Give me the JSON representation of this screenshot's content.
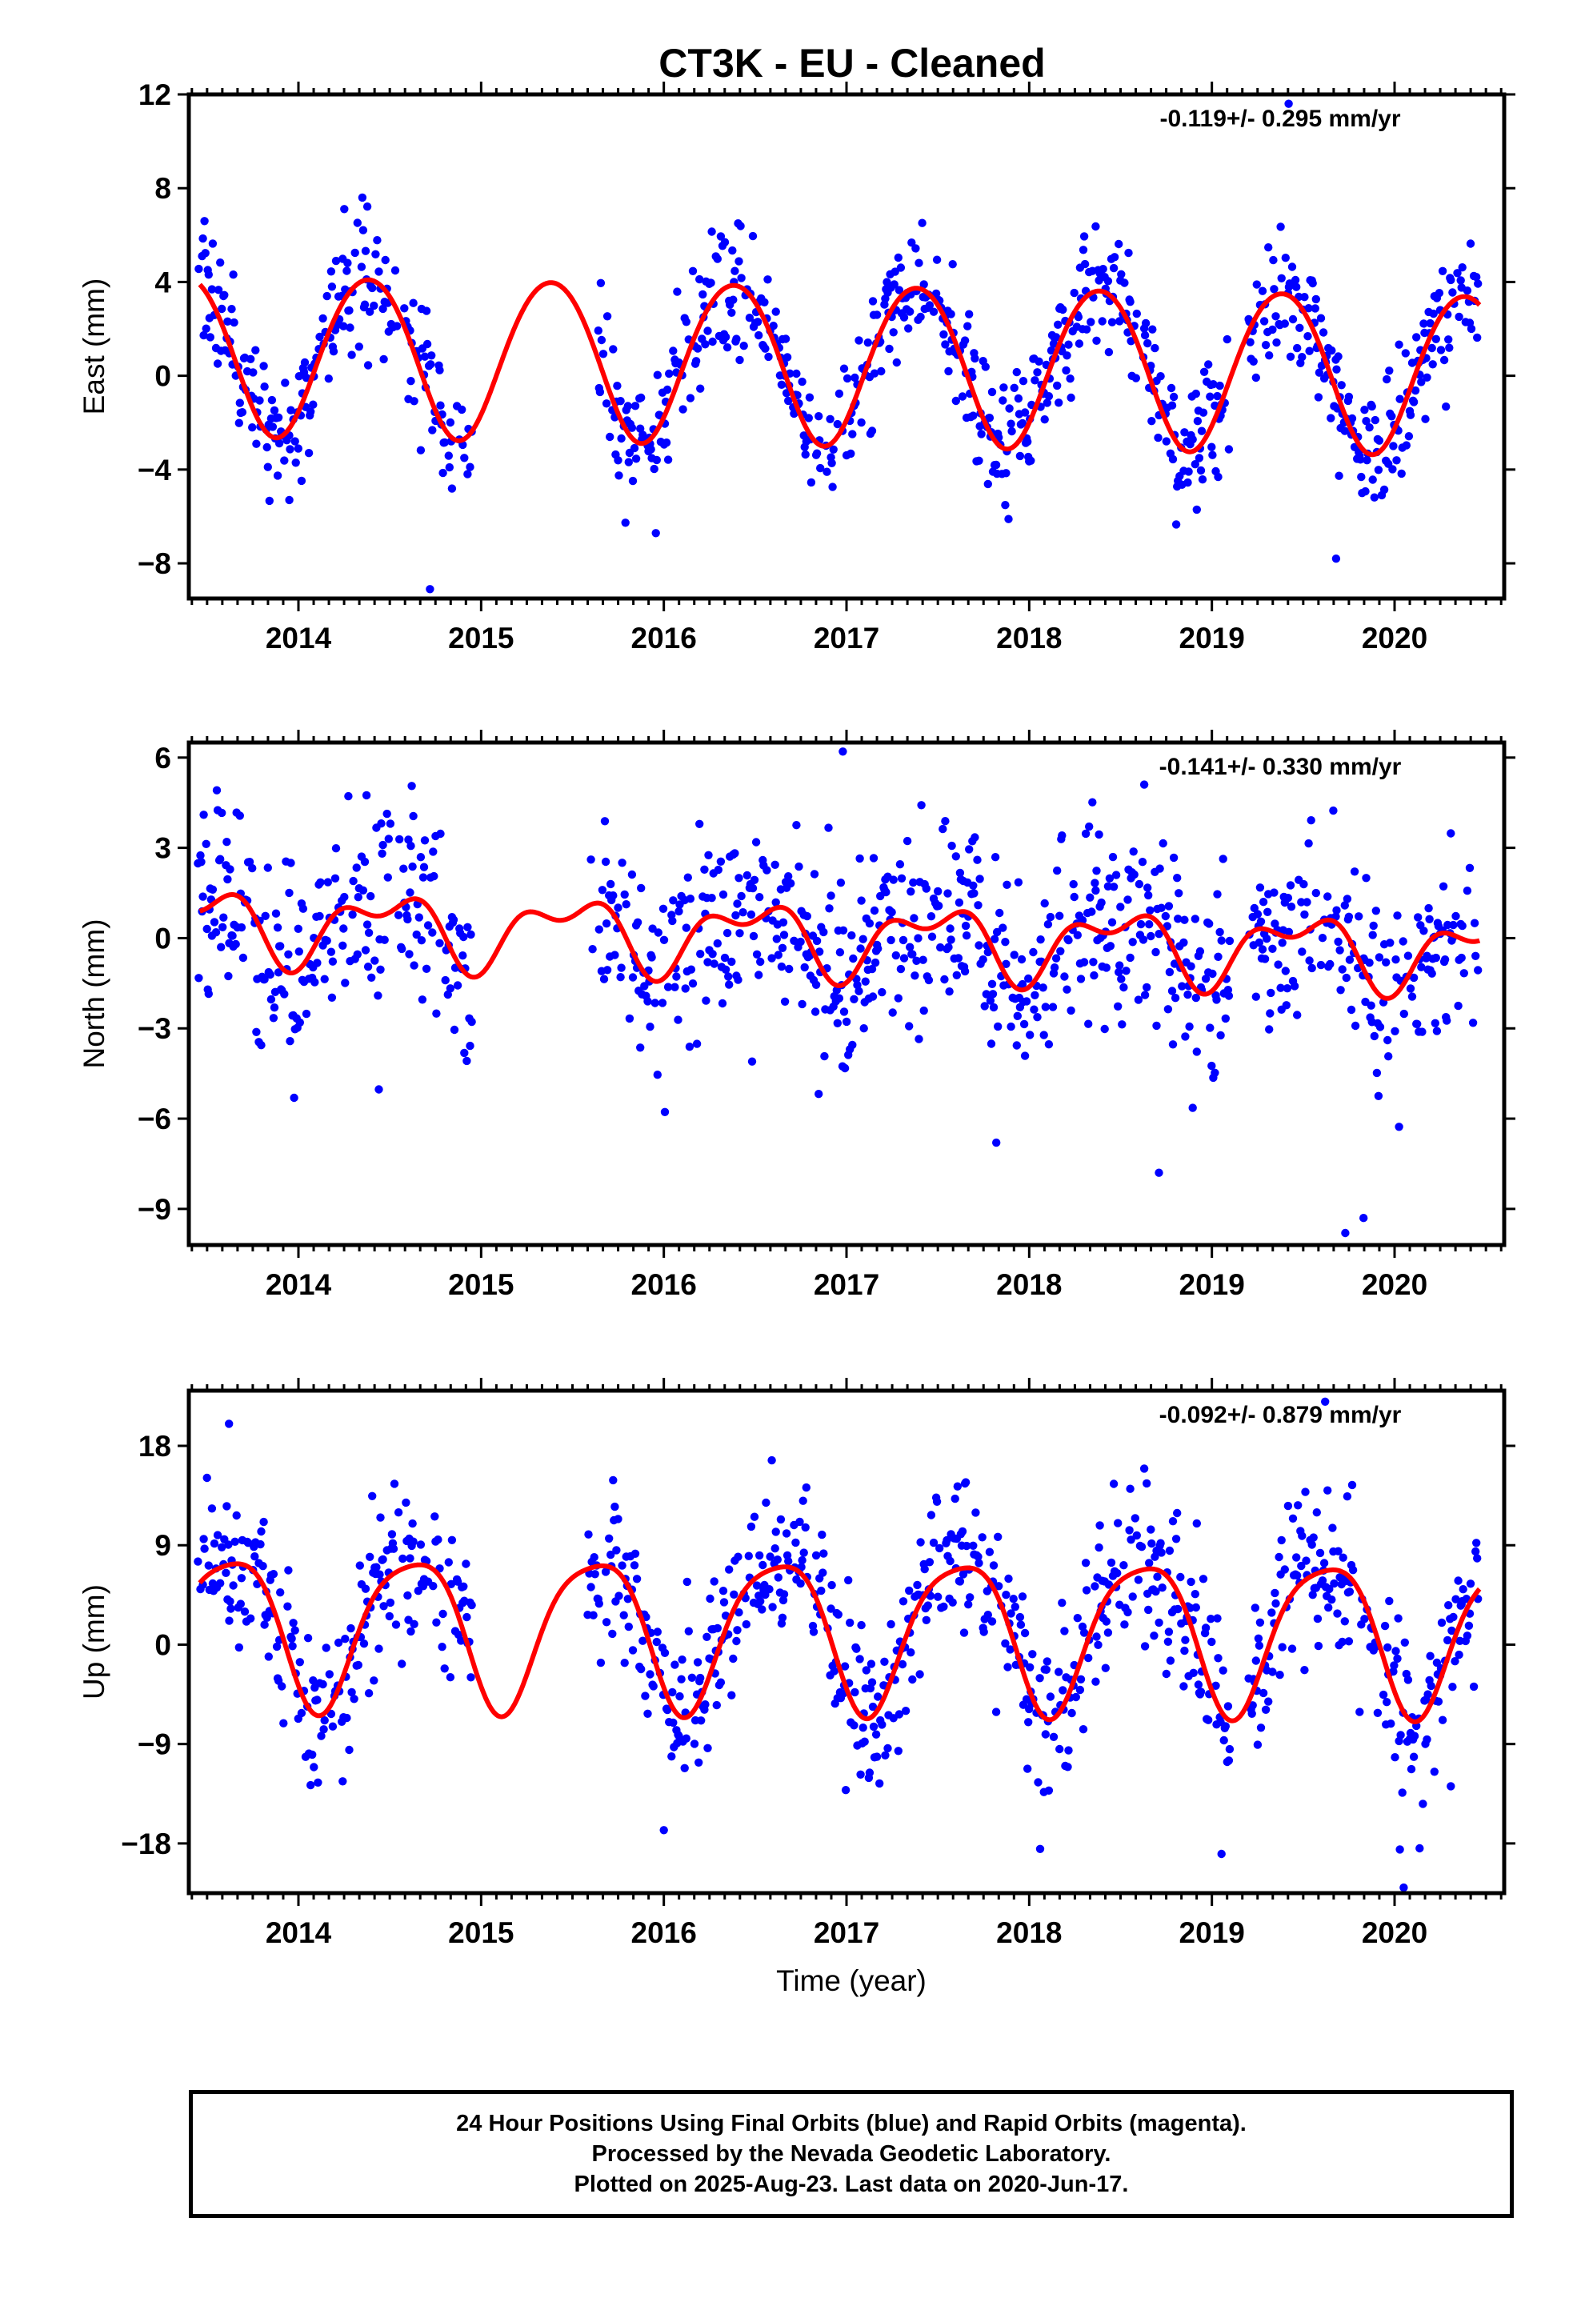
{
  "title": "CT3K  - EU - Cleaned",
  "xlabel": "Time (year)",
  "colors": {
    "points": "#0000ff",
    "fit": "#ff0000",
    "axis": "#000000"
  },
  "chart_data": [
    {
      "type": "scatter",
      "name": "East",
      "ylabel": "East (mm)",
      "rate_label": "-0.119+/- 0.295 mm/yr",
      "xlim": [
        2013.4,
        2020.6
      ],
      "ylim": [
        -9.5,
        12
      ],
      "yticks": [
        -8,
        -4,
        0,
        4,
        8,
        12
      ],
      "yticklabels": [
        "−8",
        "−4",
        "0",
        "4",
        "8",
        "12"
      ],
      "xticks": [
        2014,
        2015,
        2016,
        2017,
        2018,
        2019,
        2020
      ],
      "xticklabels": [
        "2014",
        "2015",
        "2016",
        "2017",
        "2018",
        "2019",
        "2020"
      ],
      "model": {
        "offset": 1.0,
        "trend": -0.119,
        "t0": 2013.45,
        "amp": 3.4,
        "peak": 2013.38,
        "amp2": 0.2,
        "peak2": 2013.12
      },
      "noise": 1.4,
      "outliers": [
        [
          2014.72,
          -9.1
        ],
        [
          2019.42,
          11.6
        ],
        [
          2019.68,
          -7.8
        ],
        [
          2013.95,
          -5.3
        ],
        [
          2014.35,
          7.6
        ]
      ],
      "gaps": [
        [
          2014.95,
          2015.62
        ],
        [
          2019.1,
          2019.2
        ]
      ]
    },
    {
      "type": "scatter",
      "name": "North",
      "ylabel": "North (mm)",
      "rate_label": "-0.141+/- 0.330 mm/yr",
      "xlim": [
        2013.4,
        2020.6
      ],
      "ylim": [
        -10.2,
        6.5
      ],
      "yticks": [
        -9,
        -6,
        -3,
        0,
        3,
        6
      ],
      "yticklabels": [
        "−9",
        "−6",
        "−3",
        "0",
        "3",
        "6"
      ],
      "xticks": [
        2014,
        2015,
        2016,
        2017,
        2018,
        2019,
        2020
      ],
      "xticklabels": [
        "2014",
        "2015",
        "2016",
        "2017",
        "2018",
        "2019",
        "2020"
      ],
      "model": {
        "offset": 0.5,
        "trend": -0.141,
        "t0": 2013.45,
        "amp": 1.0,
        "peak": 2013.48,
        "amp2": 0.6,
        "peak2": 2013.2
      },
      "noise": 1.6,
      "outliers": [
        [
          2019.73,
          -9.8
        ],
        [
          2019.83,
          -9.3
        ],
        [
          2016.98,
          6.2
        ],
        [
          2018.71,
          -7.8
        ],
        [
          2017.82,
          -6.8
        ]
      ],
      "gaps": [
        [
          2014.95,
          2015.6
        ],
        [
          2019.1,
          2019.2
        ]
      ]
    },
    {
      "type": "scatter",
      "name": "Up",
      "ylabel": "Up (mm)",
      "rate_label": "-0.092+/- 0.879 mm/yr",
      "xlim": [
        2013.4,
        2020.6
      ],
      "ylim": [
        -22.5,
        23
      ],
      "yticks": [
        -18,
        -9,
        0,
        9,
        18
      ],
      "yticklabels": [
        "−18",
        "−9",
        "0",
        "9",
        "18"
      ],
      "xticks": [
        2014,
        2015,
        2016,
        2017,
        2018,
        2019,
        2020
      ],
      "xticklabels": [
        "2014",
        "2015",
        "2016",
        "2017",
        "2018",
        "2019",
        "2020"
      ],
      "model": {
        "offset": 1.7,
        "trend": -0.092,
        "t0": 2013.45,
        "amp": 6.8,
        "peak": 2013.62,
        "amp2": 1.3,
        "peak2": 2013.85
      },
      "noise": 3.8,
      "outliers": [
        [
          2020.05,
          -22
        ],
        [
          2019.62,
          22
        ],
        [
          2013.62,
          20
        ],
        [
          2018.06,
          -18.5
        ],
        [
          2016.0,
          -16.8
        ]
      ],
      "gaps": [
        [
          2014.95,
          2015.58
        ],
        [
          2019.1,
          2019.2
        ]
      ]
    }
  ],
  "caption": {
    "line1": "24 Hour Positions Using Final Orbits (blue) and Rapid Orbits (magenta).",
    "line2": "Processed by the Nevada Geodetic Laboratory.",
    "line3": "Plotted on 2025-Aug-23. Last data on 2020-Jun-17."
  }
}
